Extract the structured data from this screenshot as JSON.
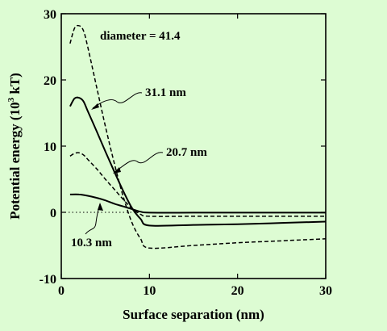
{
  "chart_data": {
    "type": "line",
    "xlabel": "Surface separation (nm)",
    "ylabel": "Potential energy (10",
    "ylabel_sup": "3",
    "ylabel_tail": " kT)",
    "xlim": [
      0,
      30
    ],
    "ylim": [
      -10,
      30
    ],
    "xticks": [
      "0",
      "10",
      "20",
      "30"
    ],
    "yticks": [
      "-10",
      "0",
      "10",
      "20",
      "30"
    ],
    "grid": false,
    "zero_line": "dotted",
    "series": [
      {
        "name": "diameter = 41.4",
        "style": "dashed",
        "x": [
          1,
          1.5,
          2,
          2.5,
          3,
          4,
          5,
          6,
          7,
          8,
          9,
          10,
          15,
          20,
          25,
          30
        ],
        "y": [
          25.5,
          27.8,
          28.2,
          27.5,
          25,
          19,
          13,
          7.5,
          2.5,
          -1.5,
          -4,
          -5.4,
          -5,
          -4.6,
          -4.3,
          -4.0
        ]
      },
      {
        "name": "31.1 nm",
        "style": "solid",
        "x": [
          1,
          1.5,
          2,
          2.5,
          3,
          4,
          5,
          6,
          7,
          8,
          9,
          10,
          15,
          20,
          25,
          30
        ],
        "y": [
          16,
          17.2,
          17.3,
          16.8,
          15.3,
          12.3,
          9.2,
          6.2,
          3.3,
          0.7,
          -1,
          -2,
          -1.9,
          -1.8,
          -1.6,
          -1.4
        ]
      },
      {
        "name": "20.7 nm",
        "style": "dashed",
        "x": [
          1,
          1.5,
          2,
          2.5,
          3,
          4,
          5,
          6,
          7,
          8,
          9,
          10,
          15,
          20,
          25,
          30
        ],
        "y": [
          8.5,
          8.9,
          9.0,
          8.7,
          8.0,
          6.6,
          5.0,
          3.5,
          2.0,
          0.6,
          -0.3,
          -0.6,
          -0.6,
          -0.6,
          -0.6,
          -0.6
        ]
      },
      {
        "name": "10.3 nm",
        "style": "solid",
        "x": [
          1,
          2,
          3,
          4,
          5,
          6,
          7,
          8,
          9,
          10,
          15,
          20,
          25,
          30
        ],
        "y": [
          2.7,
          2.7,
          2.5,
          2.2,
          1.8,
          1.3,
          0.9,
          0.5,
          0.1,
          -0.05,
          -0.05,
          -0.05,
          -0.05,
          -0.05
        ]
      }
    ],
    "annotations": [
      "diameter = 41.4",
      "31.1 nm",
      "20.7 nm",
      "10.3 nm"
    ]
  }
}
